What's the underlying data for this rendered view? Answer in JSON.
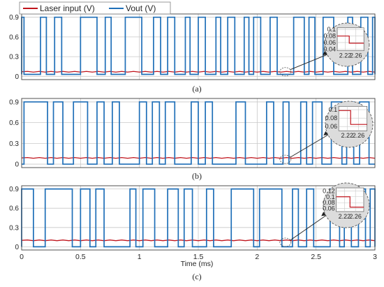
{
  "figure": {
    "legend": [
      {
        "label": "Laser input (V)",
        "color": "#c0141c"
      },
      {
        "label": "Vout (V)",
        "color": "#1f6fb8"
      }
    ],
    "xlabel": "Time (ms)",
    "colors": {
      "laser": "#c0141c",
      "vout": "#1f6fb8",
      "grid": "#c8c8c8",
      "zoom_bg": "#dcdcdc"
    }
  },
  "chart_data": [
    {
      "type": "line",
      "caption": "(a)",
      "xlim": [
        0,
        3
      ],
      "ylim": [
        -0.05,
        0.95
      ],
      "xticks": [
        0,
        0.5,
        1,
        1.5,
        2,
        2.5,
        3
      ],
      "yticks": [
        0,
        0.3,
        0.6,
        0.9
      ],
      "ytick_labels": [
        "0",
        "0.3",
        "0.6",
        "0.9"
      ],
      "grid": true,
      "series": [
        {
          "name": "Laser input (V)",
          "level": 0.07
        },
        {
          "name": "Vout (V)",
          "low": 0.03,
          "high": 0.9,
          "high_intervals": [
            [
              0,
              0.02
            ],
            [
              0.16,
              0.21
            ],
            [
              0.28,
              0.34
            ],
            [
              0.5,
              0.64
            ],
            [
              0.71,
              0.76
            ],
            [
              0.88,
              1.02
            ],
            [
              1.12,
              1.18
            ],
            [
              1.24,
              1.3
            ],
            [
              1.39,
              1.43
            ],
            [
              1.5,
              1.56
            ],
            [
              1.65,
              1.69
            ],
            [
              1.75,
              1.81
            ],
            [
              1.89,
              1.93
            ],
            [
              1.97,
              2.03
            ],
            [
              2.11,
              2.17
            ],
            [
              2.31,
              2.4
            ],
            [
              2.44,
              2.49
            ],
            [
              2.56,
              2.65
            ],
            [
              2.77,
              2.81
            ],
            [
              2.88,
              2.94
            ],
            [
              2.98,
              3.0
            ]
          ]
        }
      ],
      "inset": {
        "xticks": [
          2.22,
          2.26
        ],
        "yticks": [
          0.04,
          0.06,
          0.08,
          0.1
        ],
        "ytick_labels": [
          "0.04",
          "0.06",
          "0.08",
          "0.1"
        ],
        "xlim": [
          2.19,
          2.29
        ],
        "ylim": [
          0.035,
          0.105
        ],
        "laser": [
          [
            2.19,
            0.08
          ],
          [
            2.235,
            0.08
          ],
          [
            2.235,
            0.058
          ],
          [
            2.29,
            0.058
          ]
        ]
      }
    },
    {
      "type": "line",
      "caption": "(b)",
      "xlim": [
        0,
        3
      ],
      "ylim": [
        -0.05,
        0.95
      ],
      "xticks": [
        0,
        0.5,
        1,
        1.5,
        2,
        2.5,
        3
      ],
      "yticks": [
        0,
        0.3,
        0.6,
        0.9
      ],
      "ytick_labels": [
        "0",
        "0.3",
        "0.6",
        "0.9"
      ],
      "grid": true,
      "series": [
        {
          "name": "Laser input (V)",
          "level": 0.09
        },
        {
          "name": "Vout (V)",
          "low": 0.0,
          "high": 0.9,
          "high_intervals": [
            [
              0.02,
              0.22
            ],
            [
              0.27,
              0.35
            ],
            [
              0.44,
              0.56
            ],
            [
              0.64,
              0.7
            ],
            [
              0.77,
              0.83
            ],
            [
              1.0,
              1.06
            ],
            [
              1.11,
              1.17
            ],
            [
              1.22,
              1.3
            ],
            [
              1.44,
              1.5
            ],
            [
              1.56,
              1.62
            ],
            [
              1.82,
              1.9
            ],
            [
              2.08,
              2.14
            ],
            [
              2.22,
              2.27
            ],
            [
              2.37,
              2.42
            ],
            [
              2.47,
              2.55
            ],
            [
              2.63,
              2.72
            ],
            [
              2.76,
              2.82
            ],
            [
              2.87,
              2.95
            ]
          ]
        }
      ],
      "inset": {
        "xticks": [
          2.22,
          2.26
        ],
        "yticks": [
          0.06,
          0.08,
          0.1
        ],
        "ytick_labels": [
          "0.06",
          "0.08",
          "0.1"
        ],
        "xlim": [
          2.19,
          2.29
        ],
        "ylim": [
          0.05,
          0.108
        ],
        "laser": [
          [
            2.19,
            0.098
          ],
          [
            2.232,
            0.098
          ],
          [
            2.232,
            0.065
          ],
          [
            2.29,
            0.065
          ]
        ]
      }
    },
    {
      "type": "line",
      "caption": "(c)",
      "xlim": [
        0,
        3
      ],
      "ylim": [
        -0.05,
        0.95
      ],
      "xticks": [
        0,
        0.5,
        1,
        1.5,
        2,
        2.5,
        3
      ],
      "yticks": [
        0,
        0.3,
        0.6,
        0.9
      ],
      "ytick_labels": [
        "0",
        "0.3",
        "0.6",
        "0.9"
      ],
      "grid": true,
      "series": [
        {
          "name": "Laser input (V)",
          "level": 0.1
        },
        {
          "name": "Vout (V)",
          "low": 0.0,
          "high": 0.9,
          "high_intervals": [
            [
              0,
              0.1
            ],
            [
              0.2,
              0.43
            ],
            [
              0.5,
              0.58
            ],
            [
              0.63,
              0.7
            ],
            [
              0.92,
              0.97
            ],
            [
              1.03,
              1.13
            ],
            [
              1.24,
              1.33
            ],
            [
              1.38,
              1.45
            ],
            [
              1.57,
              1.63
            ],
            [
              1.78,
              1.97
            ],
            [
              2.02,
              2.21
            ],
            [
              2.3,
              2.35
            ],
            [
              2.42,
              2.48
            ],
            [
              2.62,
              2.7
            ],
            [
              2.74,
              2.8
            ],
            [
              2.86,
              2.92
            ],
            [
              2.96,
              3.0
            ]
          ]
        }
      ],
      "inset": {
        "xticks": [
          2.22,
          2.26
        ],
        "yticks": [
          0.06,
          0.08,
          0.1,
          0.12
        ],
        "ytick_labels": [
          "0.06",
          "0.08",
          "0.1",
          "0.12"
        ],
        "xlim": [
          2.19,
          2.29
        ],
        "ylim": [
          0.05,
          0.13
        ],
        "laser": [
          [
            2.19,
            0.1
          ],
          [
            2.24,
            0.1
          ],
          [
            2.24,
            0.065
          ],
          [
            2.29,
            0.065
          ]
        ]
      }
    }
  ]
}
